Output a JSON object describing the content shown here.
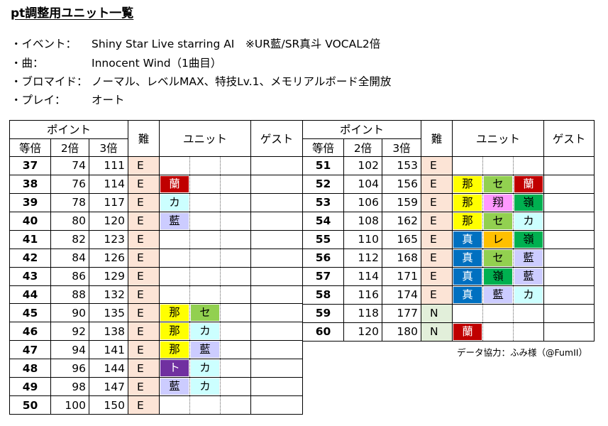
{
  "title": "pt調整用ユニット一覧",
  "info": [
    {
      "label": "・イベント：",
      "value": "Shiny Star Live starring AI　※UR藍/SR真斗 VOCAL2倍"
    },
    {
      "label": "・曲：",
      "value": "Innocent Wind（1曲目）"
    },
    {
      "label": "・ブロマイド：",
      "value": "ノーマル、レベルMAX、特技Lv.1、メモリアルボード全開放"
    },
    {
      "label": "・プレイ：",
      "value": "オート"
    }
  ],
  "headers": {
    "points": "ポイント",
    "x1": "等倍",
    "x2": "2倍",
    "x3": "3倍",
    "difficulty": "難",
    "unit": "ユニット",
    "guest": "ゲスト"
  },
  "colors": {
    "蘭": "#c00000",
    "カ": "#ccffff",
    "藍": "#ccccff",
    "那": "#ffff00",
    "セ": "#92d050",
    "ト": "#7030a0",
    "翔": "#ff99ff",
    "嶺": "#00b050",
    "真": "#0070c0",
    "レ": "#ffc000"
  },
  "text_colors": {
    "蘭": "#ffffff",
    "ト": "#ffffff",
    "真": "#ffffff"
  },
  "left_rows": [
    {
      "x1": "37",
      "x2": "74",
      "x3": "111",
      "diff": "E",
      "units": []
    },
    {
      "x1": "38",
      "x2": "76",
      "x3": "114",
      "diff": "E",
      "units": [
        "蘭"
      ]
    },
    {
      "x1": "39",
      "x2": "78",
      "x3": "117",
      "diff": "E",
      "units": [
        "カ"
      ]
    },
    {
      "x1": "40",
      "x2": "80",
      "x3": "120",
      "diff": "E",
      "units": [
        "藍"
      ]
    },
    {
      "x1": "41",
      "x2": "82",
      "x3": "123",
      "diff": "E",
      "units": []
    },
    {
      "x1": "42",
      "x2": "84",
      "x3": "126",
      "diff": "E",
      "units": []
    },
    {
      "x1": "43",
      "x2": "86",
      "x3": "129",
      "diff": "E",
      "units": []
    },
    {
      "x1": "44",
      "x2": "88",
      "x3": "132",
      "diff": "E",
      "units": []
    },
    {
      "x1": "45",
      "x2": "90",
      "x3": "135",
      "diff": "E",
      "units": [
        "那",
        "セ"
      ]
    },
    {
      "x1": "46",
      "x2": "92",
      "x3": "138",
      "diff": "E",
      "units": [
        "那",
        "カ"
      ]
    },
    {
      "x1": "47",
      "x2": "94",
      "x3": "141",
      "diff": "E",
      "units": [
        "那",
        "藍"
      ]
    },
    {
      "x1": "48",
      "x2": "96",
      "x3": "144",
      "diff": "E",
      "units": [
        "ト",
        "カ"
      ]
    },
    {
      "x1": "49",
      "x2": "98",
      "x3": "147",
      "diff": "E",
      "units": [
        "藍",
        "カ"
      ]
    },
    {
      "x1": "50",
      "x2": "100",
      "x3": "150",
      "diff": "E",
      "units": []
    }
  ],
  "right_rows": [
    {
      "x1": "51",
      "x2": "102",
      "x3": "153",
      "diff": "E",
      "units": []
    },
    {
      "x1": "52",
      "x2": "104",
      "x3": "156",
      "diff": "E",
      "units": [
        "那",
        "セ",
        "蘭"
      ]
    },
    {
      "x1": "53",
      "x2": "106",
      "x3": "159",
      "diff": "E",
      "units": [
        "那",
        "翔",
        "嶺"
      ]
    },
    {
      "x1": "54",
      "x2": "108",
      "x3": "162",
      "diff": "E",
      "units": [
        "那",
        "セ",
        "カ"
      ]
    },
    {
      "x1": "55",
      "x2": "110",
      "x3": "165",
      "diff": "E",
      "units": [
        "真",
        "レ",
        "嶺"
      ]
    },
    {
      "x1": "56",
      "x2": "112",
      "x3": "168",
      "diff": "E",
      "units": [
        "真",
        "セ",
        "藍"
      ]
    },
    {
      "x1": "57",
      "x2": "114",
      "x3": "171",
      "diff": "E",
      "units": [
        "真",
        "嶺",
        "藍"
      ]
    },
    {
      "x1": "58",
      "x2": "116",
      "x3": "174",
      "diff": "E",
      "units": [
        "真",
        "藍",
        "カ"
      ]
    },
    {
      "x1": "59",
      "x2": "118",
      "x3": "177",
      "diff": "N",
      "units": []
    },
    {
      "x1": "60",
      "x2": "120",
      "x3": "180",
      "diff": "N",
      "units": [
        "蘭"
      ]
    }
  ],
  "credit": "データ協力：ふみ様（@FumII）"
}
